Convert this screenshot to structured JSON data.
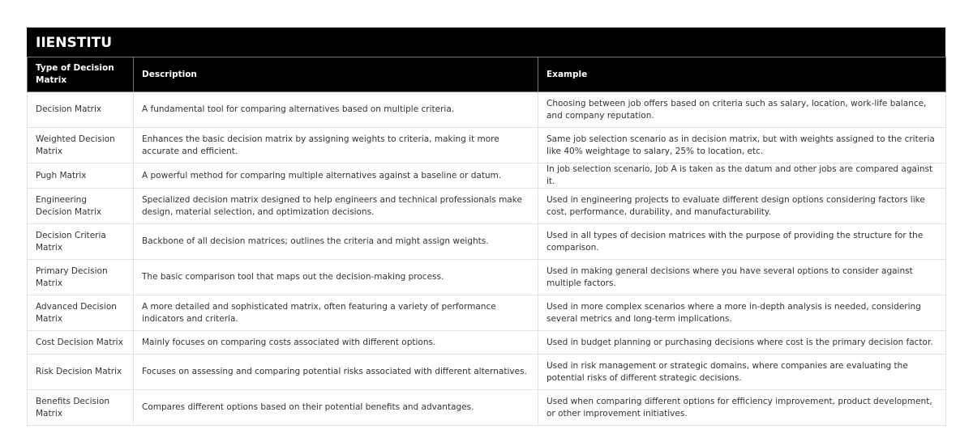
{
  "title": "IIENSTITU",
  "headers": [
    "Type of Decision Matrix",
    "Description",
    "Example"
  ],
  "rows": [
    [
      "Decision Matrix",
      "A fundamental tool for comparing alternatives based on multiple criteria.",
      "Choosing between job offers based on criteria such as salary, location, work-life balance, and company reputation."
    ],
    [
      "Weighted Decision Matrix",
      "Enhances the basic decision matrix by assigning weights to criteria, making it more accurate and efficient.",
      "Same job selection scenario as in decision matrix, but with weights assigned to the criteria like 40% weightage to salary, 25% to location, etc."
    ],
    [
      "Pugh Matrix",
      "A powerful method for comparing multiple alternatives against a baseline or datum.",
      "In job selection scenario, Job A is taken as the datum and other jobs are compared against it."
    ],
    [
      "Engineering Decision Matrix",
      "Specialized decision matrix designed to help engineers and technical professionals make design, material selection, and optimization decisions.",
      "Used in engineering projects to evaluate different design options considering factors like cost, performance, durability, and manufacturability."
    ],
    [
      "Decision Criteria Matrix",
      "Backbone of all decision matrices; outlines the criteria and might assign weights.",
      "Used in all types of decision matrices with the purpose of providing the structure for the comparison."
    ],
    [
      "Primary Decision Matrix",
      "The basic comparison tool that maps out the decision-making process.",
      "Used in making general decisions where you have several options to consider against multiple factors."
    ],
    [
      "Advanced Decision Matrix",
      "A more detailed and sophisticated matrix, often featuring a variety of performance indicators and criteria.",
      "Used in more complex scenarios where a more in-depth analysis is needed, considering several metrics and long-term implications."
    ],
    [
      "Cost Decision Matrix",
      "Mainly focuses on comparing costs associated with different options.",
      "Used in budget planning or purchasing decisions where cost is the primary decision factor."
    ],
    [
      "Risk Decision Matrix",
      "Focuses on assessing and comparing potential risks associated with different alternatives.",
      "Used in risk management or strategic domains, where companies are evaluating the potential risks of different strategic decisions."
    ],
    [
      "Benefits Decision Matrix",
      "Compares different options based on their potential benefits and advantages.",
      "Used when comparing different options for efficiency improvement, product development, or other improvement initiatives."
    ]
  ]
}
